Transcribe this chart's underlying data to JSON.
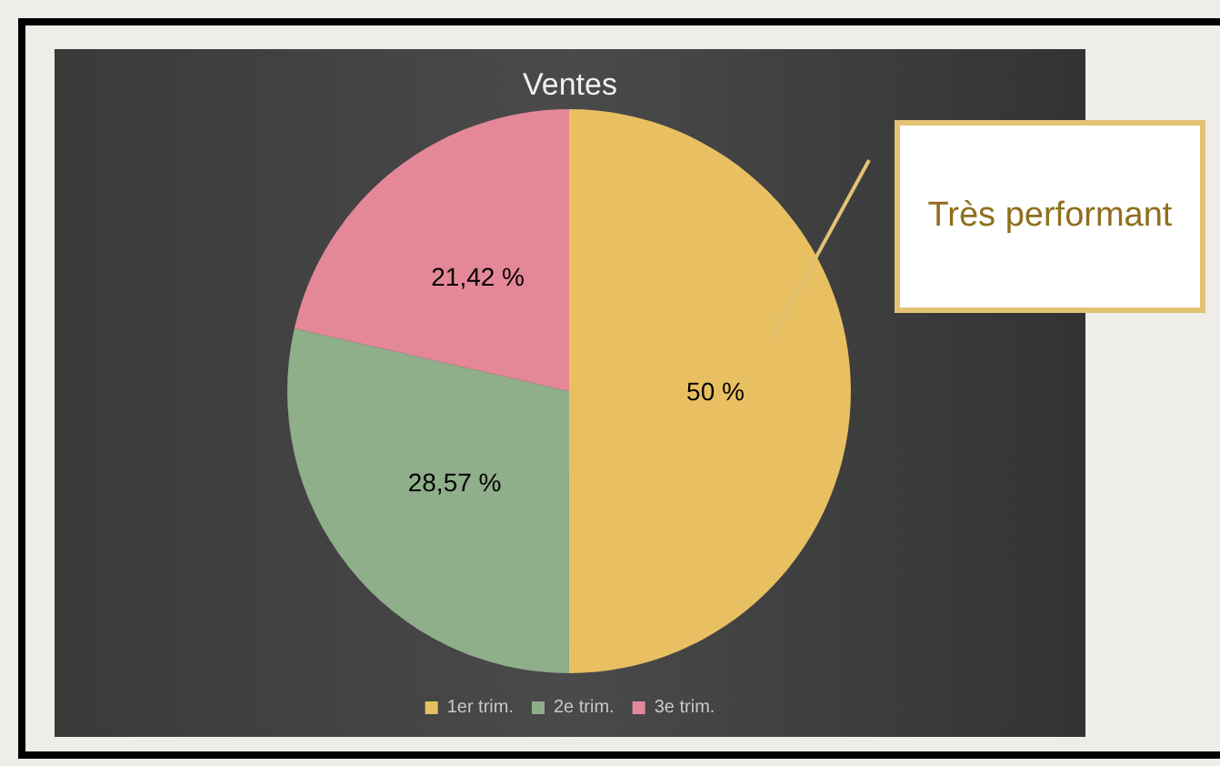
{
  "chart_data": {
    "type": "pie",
    "title": "Ventes",
    "categories": [
      "1er trim.",
      "2e trim.",
      "3e trim."
    ],
    "values": [
      50,
      28.57,
      21.42
    ],
    "value_labels": [
      "50 %",
      "28,57 %",
      "21,42 %"
    ],
    "colors": [
      "#e8c062",
      "#8fae8a",
      "#e48898"
    ],
    "legend": "bottom",
    "annotations": [
      "Très performant"
    ]
  }
}
